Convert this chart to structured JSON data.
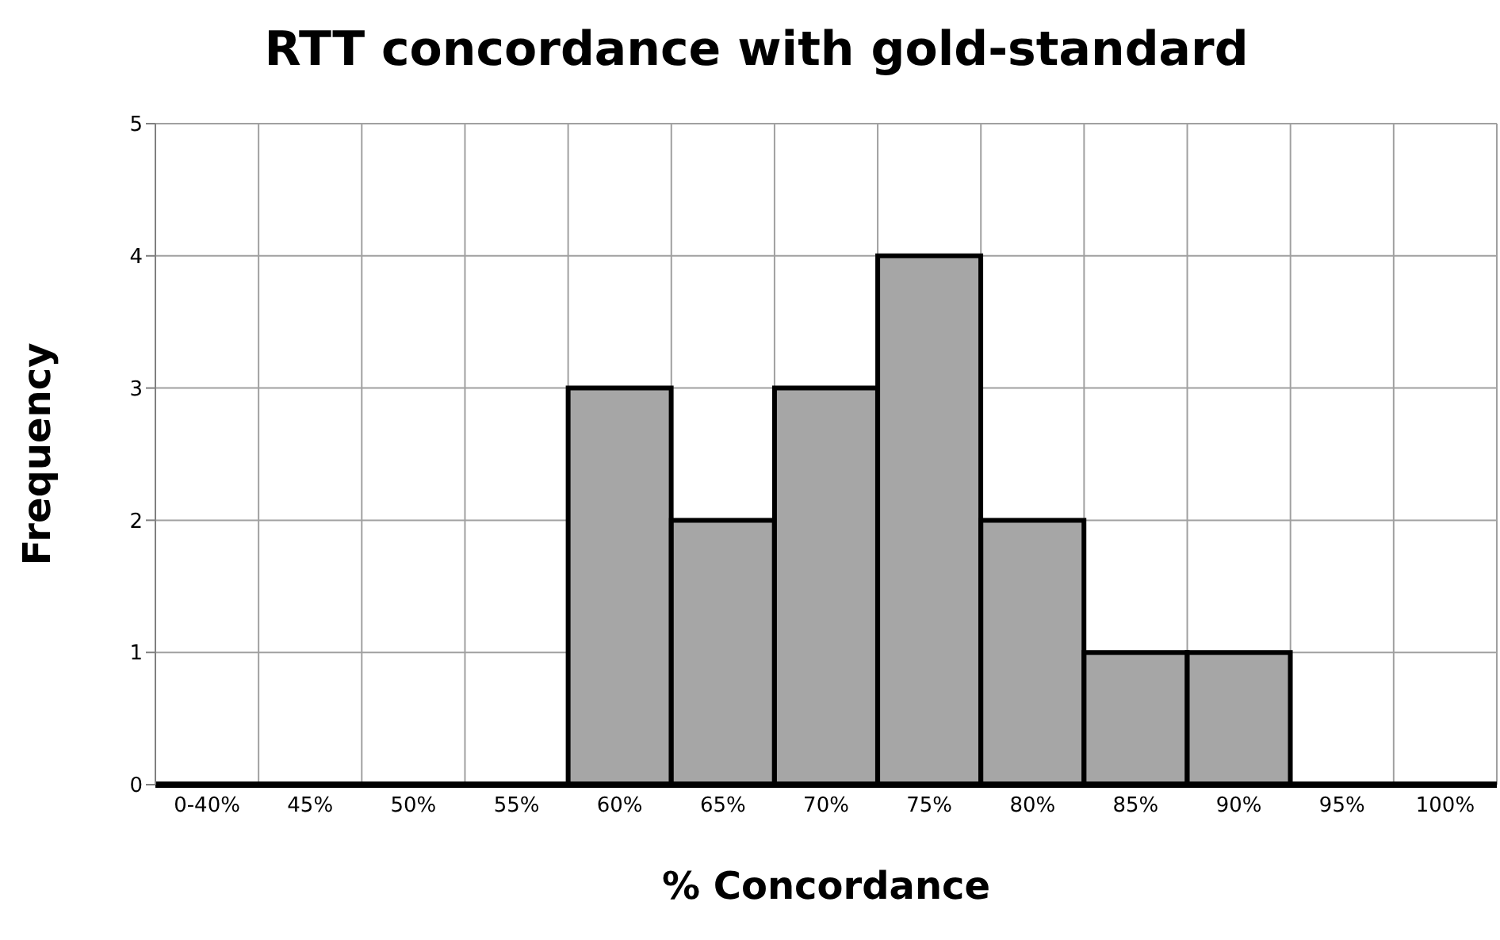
{
  "chart_data": {
    "type": "bar",
    "title": "RTT concordance with gold-standard",
    "xlabel": "% Concordance",
    "ylabel": "Frequency",
    "categories": [
      "0-40%",
      "45%",
      "50%",
      "55%",
      "60%",
      "65%",
      "70%",
      "75%",
      "80%",
      "85%",
      "90%",
      "95%",
      "100%"
    ],
    "values": [
      0,
      0,
      0,
      0,
      3,
      2,
      3,
      4,
      2,
      1,
      1,
      0,
      0
    ],
    "color": "#a6a6a6",
    "ylim": [
      0,
      5
    ],
    "yticks": [
      0,
      1,
      2,
      3,
      4,
      5
    ],
    "grid": true
  }
}
